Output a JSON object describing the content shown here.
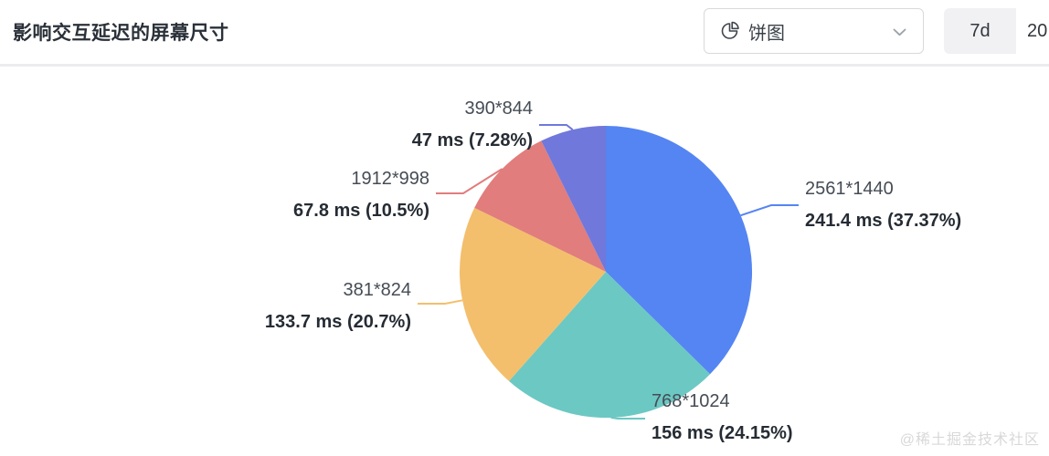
{
  "header": {
    "title": "影响交互延迟的屏幕尺寸",
    "chart_type_selector": {
      "selected_label": "饼图",
      "icon": "pie-chart-icon",
      "chevron": "chevron-down-icon"
    },
    "range_buttons": [
      {
        "label": "7d",
        "selected": true
      },
      {
        "label": "20",
        "selected": false
      }
    ]
  },
  "watermark": "@稀土掘金技术社区",
  "colors": {
    "blue": "#5585F2",
    "teal": "#6CC8C3",
    "orange": "#F3BF6C",
    "red": "#E17D7C",
    "purple": "#7078DB",
    "header_border": "#ececee"
  },
  "chart_data": {
    "type": "pie",
    "title": "影响交互延迟的屏幕尺寸",
    "unit": "ms",
    "start_angle_deg": 0,
    "direction": "clockwise",
    "legend": false,
    "slices": [
      {
        "label": "2561*1440",
        "value_ms": 241.4,
        "percent": 37.37,
        "display": "241.4 ms (37.37%)",
        "color": "#5585F2"
      },
      {
        "label": "768*1024",
        "value_ms": 156,
        "percent": 24.15,
        "display": "156 ms (24.15%)",
        "color": "#6CC8C3"
      },
      {
        "label": "381*824",
        "value_ms": 133.7,
        "percent": 20.7,
        "display": "133.7 ms (20.7%)",
        "color": "#F3BF6C"
      },
      {
        "label": "1912*998",
        "value_ms": 67.8,
        "percent": 10.5,
        "display": "67.8 ms (10.5%)",
        "color": "#E17D7C"
      },
      {
        "label": "390*844",
        "value_ms": 47,
        "percent": 7.28,
        "display": "47 ms (7.28%)",
        "color": "#7078DB"
      }
    ]
  }
}
